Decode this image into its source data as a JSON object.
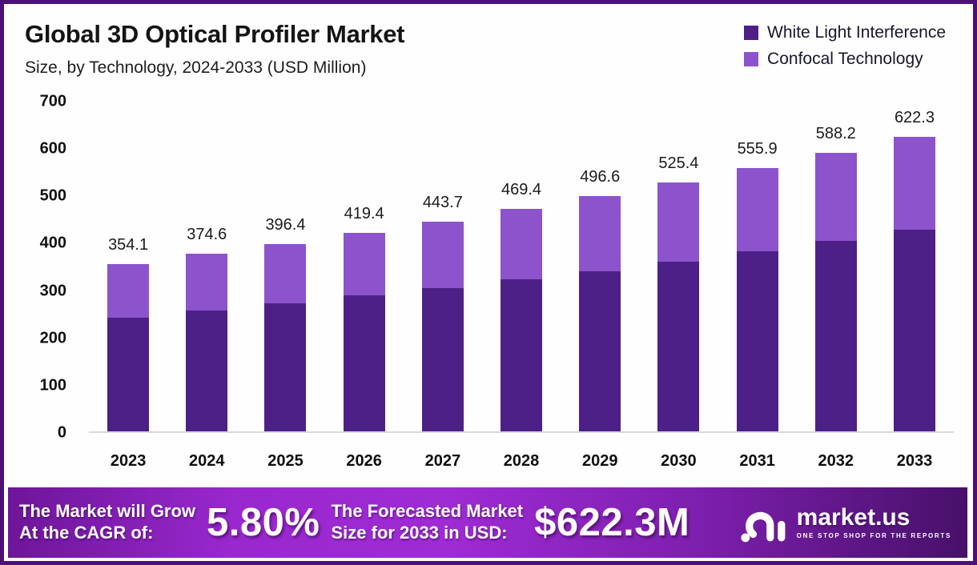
{
  "header": {
    "title": "Global 3D Optical Profiler Market",
    "subtitle": "Size, by Technology, 2024-2033 (USD Million)"
  },
  "legend": [
    {
      "label": "White Light Interference",
      "color": "#4d2088"
    },
    {
      "label": "Confocal Technology",
      "color": "#8c53cd"
    }
  ],
  "chart_data": {
    "type": "bar",
    "stacked": true,
    "title": "Global 3D Optical Profiler Market Size, by Technology, 2024-2033 (USD Million)",
    "categories": [
      "2023",
      "2024",
      "2025",
      "2026",
      "2027",
      "2028",
      "2029",
      "2030",
      "2031",
      "2032",
      "2033"
    ],
    "series": [
      {
        "name": "White Light Interference",
        "color": "#4d2088",
        "values": [
          240.0,
          255.5,
          270.8,
          287.0,
          303.5,
          321.0,
          339.0,
          358.5,
          380.5,
          403.0,
          425.5
        ]
      },
      {
        "name": "Confocal Technology",
        "color": "#8c53cd",
        "values": [
          114.1,
          119.1,
          125.6,
          132.4,
          140.2,
          148.4,
          157.6,
          166.9,
          175.4,
          185.2,
          196.8
        ]
      }
    ],
    "totals": [
      354.1,
      374.6,
      396.4,
      419.4,
      443.7,
      469.4,
      496.6,
      525.4,
      555.9,
      588.2,
      622.3
    ],
    "total_labels": [
      "354.1",
      "374.6",
      "396.4",
      "419.4",
      "443.7",
      "469.4",
      "496.6",
      "525.4",
      "555.9",
      "588.2",
      "622.3"
    ],
    "xlabel": "",
    "ylabel": "",
    "ylim": [
      0,
      700
    ],
    "yticks": [
      0,
      100,
      200,
      300,
      400,
      500,
      600,
      700
    ],
    "grid": false,
    "legend_position": "top-right"
  },
  "footer": {
    "cagr_label_line1": "The Market will Grow",
    "cagr_label_line2": "At the CAGR of:",
    "cagr_value": "5.80%",
    "forecast_label_line1": "The Forecasted Market",
    "forecast_label_line2": "Size for 2033 in USD:",
    "forecast_value": "$622.3M",
    "brand": {
      "name": "market.us",
      "tagline": "ONE STOP SHOP FOR THE REPORTS"
    }
  },
  "colors": {
    "frame_border": "#4c1077",
    "bar_dark": "#4d2088",
    "bar_light": "#8c53cd",
    "axis_line": "#d9d9d9",
    "banner_text": "#ffffff"
  }
}
